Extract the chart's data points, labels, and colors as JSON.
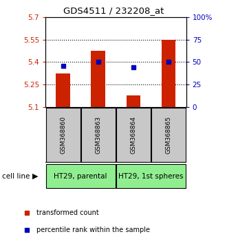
{
  "title": "GDS4511 / 232208_at",
  "samples": [
    "GSM368860",
    "GSM368863",
    "GSM368864",
    "GSM368865"
  ],
  "red_values": [
    5.325,
    5.475,
    5.175,
    5.55
  ],
  "blue_values": [
    46,
    50,
    44,
    50
  ],
  "ylim_left": [
    5.1,
    5.7
  ],
  "ylim_right": [
    0,
    100
  ],
  "yticks_left": [
    5.1,
    5.25,
    5.4,
    5.55,
    5.7
  ],
  "yticks_right": [
    0,
    25,
    50,
    75,
    100
  ],
  "ytick_labels_left": [
    "5.1",
    "5.25",
    "5.4",
    "5.55",
    "5.7"
  ],
  "ytick_labels_right": [
    "0",
    "25",
    "50",
    "75",
    "100%"
  ],
  "cell_line_groups": [
    {
      "label": "HT29, parental",
      "samples": [
        0,
        1
      ],
      "color": "#90EE90"
    },
    {
      "label": "HT29, 1st spheres",
      "samples": [
        2,
        3
      ],
      "color": "#90EE90"
    }
  ],
  "bar_color": "#cc2200",
  "dot_color": "#0000bb",
  "bar_width": 0.4,
  "plot_bg_color": "#ffffff",
  "sample_box_color": "#c8c8c8",
  "left_tick_color": "#cc2200",
  "right_tick_color": "#0000bb",
  "legend_items": [
    "transformed count",
    "percentile rank within the sample"
  ],
  "gridlines": [
    5.25,
    5.4,
    5.55
  ]
}
